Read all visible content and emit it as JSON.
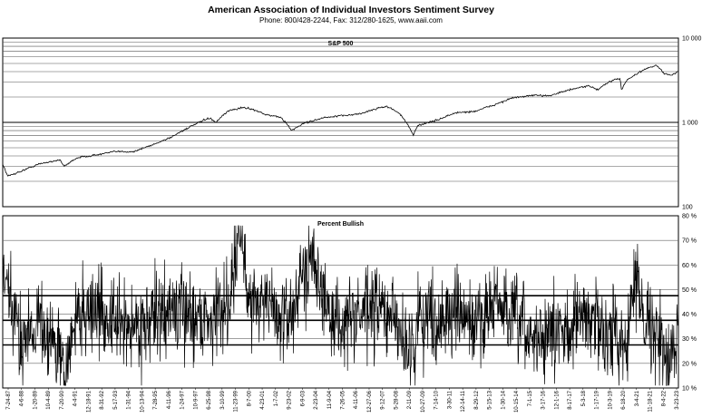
{
  "header": {
    "title": "American Association of Individual Investors Sentiment Survey",
    "subtitle": "Phone: 800/428-2244, Fax: 312/280-1625, www.aaii.com"
  },
  "chart_data": [
    {
      "type": "line",
      "title": "S&P 500",
      "yscale": "log",
      "ylim": [
        100,
        10000
      ],
      "yticks": [
        100,
        1000,
        10000
      ],
      "ytick_labels": [
        "100",
        "1 000",
        "10 000"
      ],
      "grid": true,
      "x_start": "1987-07",
      "x_end": "2023-03",
      "series": [
        {
          "x": [
            "1987-07",
            "1987-10",
            "1988-06",
            "1989-06",
            "1990-07",
            "1990-10",
            "1991-06",
            "1992-06",
            "1993-06",
            "1994-06",
            "1995-06",
            "1996-06",
            "1997-06",
            "1998-06",
            "1998-10",
            "1999-06",
            "2000-03",
            "2000-09",
            "2001-06",
            "2002-03",
            "2002-10",
            "2003-06",
            "2004-06",
            "2005-06",
            "2006-06",
            "2007-06",
            "2007-10",
            "2008-06",
            "2009-03",
            "2009-06",
            "2010-06",
            "2011-06",
            "2012-06",
            "2013-06",
            "2014-06",
            "2015-06",
            "2016-06",
            "2017-06",
            "2018-06",
            "2018-12",
            "2019-06",
            "2020-02",
            "2020-03",
            "2020-06",
            "2021-06",
            "2022-01",
            "2022-06",
            "2022-10",
            "2023-03"
          ],
          "values": [
            320,
            230,
            260,
            320,
            360,
            300,
            380,
            410,
            450,
            450,
            540,
            670,
            890,
            1130,
            990,
            1370,
            1500,
            1440,
            1230,
            1150,
            800,
            980,
            1130,
            1200,
            1270,
            1500,
            1550,
            1300,
            700,
            920,
            1060,
            1300,
            1350,
            1600,
            1950,
            2080,
            2090,
            2430,
            2700,
            2450,
            2950,
            3350,
            2400,
            3100,
            4300,
            4750,
            3800,
            3600,
            4000
          ]
        }
      ]
    },
    {
      "type": "line",
      "title": "Percent Bullish",
      "ylim": [
        10,
        80
      ],
      "yticks": [
        10,
        20,
        30,
        40,
        50,
        60,
        70,
        80
      ],
      "ytick_labels": [
        "10 %",
        "20 %",
        "30 %",
        "40 %",
        "50 %",
        "60 %",
        "70 %",
        "80 %"
      ],
      "reference_lines": [
        27.5,
        37.5,
        47.5
      ],
      "x_start": "1987-07",
      "x_end": "2023-03",
      "x_tick_labels": [
        "7-24-87",
        "4-6-88",
        "1-20-89",
        "10-4-89",
        "7-20-90",
        "4-4-91",
        "12-18-91",
        "8-31-92",
        "5-17-93",
        "1-31-94",
        "10-13-94",
        "7-28-95",
        "4-11-96",
        "1-24-97",
        "10-9-97",
        "6-25-98",
        "3-10-99",
        "11-23-99",
        "8-7-00",
        "4-23-01",
        "1-7-02",
        "9-23-02",
        "6-9-03",
        "2-23-04",
        "11-9-04",
        "7-26-05",
        "4-11-06",
        "12-27-06",
        "9-12-07",
        "5-28-08",
        "2-11-09",
        "10-27-09",
        "7-14-10",
        "3-30-11",
        "12-14-11",
        "8-29-12",
        "5-15-13",
        "1-30-14",
        "10-15-14",
        "7-1-15",
        "3-17-16",
        "12-1-16",
        "8-17-17",
        "5-3-18",
        "1-17-19",
        "10-3-19",
        "6-18-20",
        "3-4-21",
        "11-18-21",
        "8-4-22",
        "3-23-23"
      ],
      "series": [
        {
          "x": [
            "1987-07",
            "1988-06",
            "1989-06",
            "1990-06",
            "1990-10",
            "1991-06",
            "1992-06",
            "1993-06",
            "1994-06",
            "1995-06",
            "1996-06",
            "1997-06",
            "1998-06",
            "1999-06",
            "2000-01",
            "2000-06",
            "2001-06",
            "2002-06",
            "2003-06",
            "2003-12",
            "2004-06",
            "2005-06",
            "2006-06",
            "2007-06",
            "2008-06",
            "2009-03",
            "2009-06",
            "2010-06",
            "2011-06",
            "2012-06",
            "2013-06",
            "2014-06",
            "2015-06",
            "2016-06",
            "2017-06",
            "2018-06",
            "2019-06",
            "2020-06",
            "2021-01",
            "2021-06",
            "2022-06",
            "2022-09",
            "2023-03"
          ],
          "values": [
            55,
            30,
            38,
            25,
            14,
            40,
            42,
            36,
            35,
            38,
            42,
            40,
            38,
            45,
            75,
            48,
            45,
            36,
            55,
            70,
            42,
            36,
            40,
            42,
            35,
            22,
            40,
            38,
            40,
            35,
            45,
            38,
            30,
            31,
            35,
            40,
            32,
            30,
            55,
            40,
            24,
            18,
            35
          ]
        }
      ]
    }
  ]
}
